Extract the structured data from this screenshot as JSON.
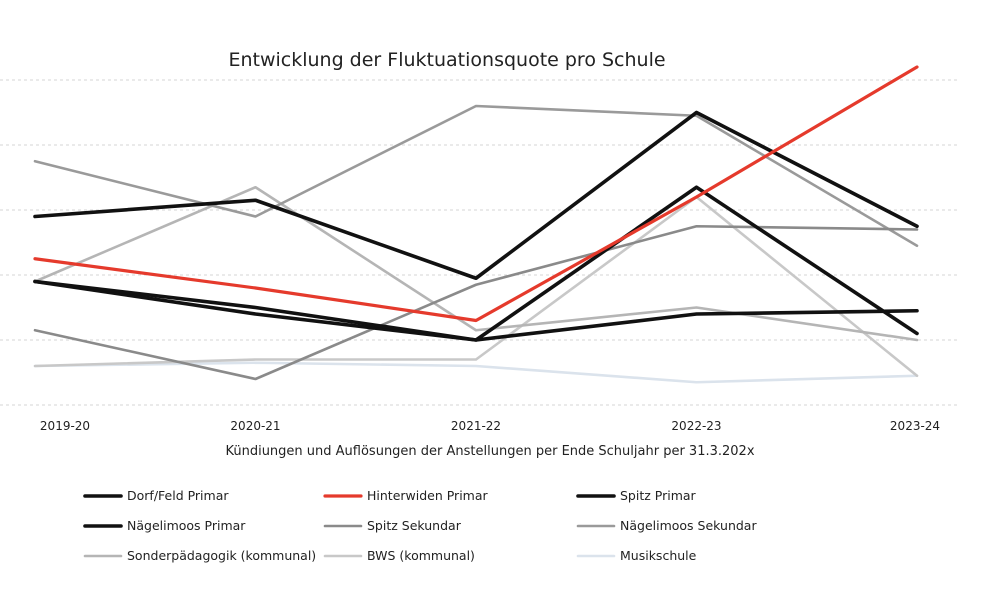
{
  "chart_data": {
    "type": "line",
    "title": "Entwicklung der Fluktuationsquote pro Schule",
    "xlabel": "Kündiungen und Auflösungen der Anstellungen per Ende Schuljahr per 31.3.202x",
    "ylabel": "",
    "categories": [
      "2019-20",
      "2020-21",
      "2021-22",
      "2022-23",
      "2023-24"
    ],
    "ylim": [
      0,
      10
    ],
    "grid": true,
    "legend_position": "bottom",
    "series": [
      {
        "name": "Dorf/Feld Primar",
        "color": "#111111",
        "values": [
          3.8,
          3.0,
          2.0,
          2.8,
          2.9
        ]
      },
      {
        "name": "Hinterwiden Primar",
        "color": "#e53a2c",
        "values": [
          4.5,
          3.6,
          2.6,
          6.4,
          10.4
        ]
      },
      {
        "name": "Spitz Primar",
        "color": "#111111",
        "values": [
          5.8,
          6.3,
          3.9,
          9.0,
          5.5
        ]
      },
      {
        "name": "Nägelimoos Primar",
        "color": "#111111",
        "values": [
          3.8,
          2.8,
          2.0,
          6.7,
          2.2
        ]
      },
      {
        "name": "Spitz Sekundar",
        "color": "#8a8a8a",
        "values": [
          2.3,
          0.8,
          3.7,
          5.5,
          5.4
        ]
      },
      {
        "name": "Nägelimoos Sekundar",
        "color": "#9a9a9a",
        "values": [
          7.5,
          5.8,
          9.2,
          8.9,
          4.9
        ]
      },
      {
        "name": "Sonderpädagogik (kommunal)",
        "color": "#b5b5b5",
        "values": [
          3.8,
          6.7,
          2.3,
          3.0,
          2.0
        ]
      },
      {
        "name": "BWS (kommunal)",
        "color": "#c8c8c8",
        "values": [
          1.2,
          1.4,
          1.4,
          6.4,
          0.9
        ]
      },
      {
        "name": "Musikschule",
        "color": "#dbe3ec",
        "values": [
          1.2,
          1.3,
          1.2,
          0.7,
          0.9
        ]
      }
    ]
  }
}
